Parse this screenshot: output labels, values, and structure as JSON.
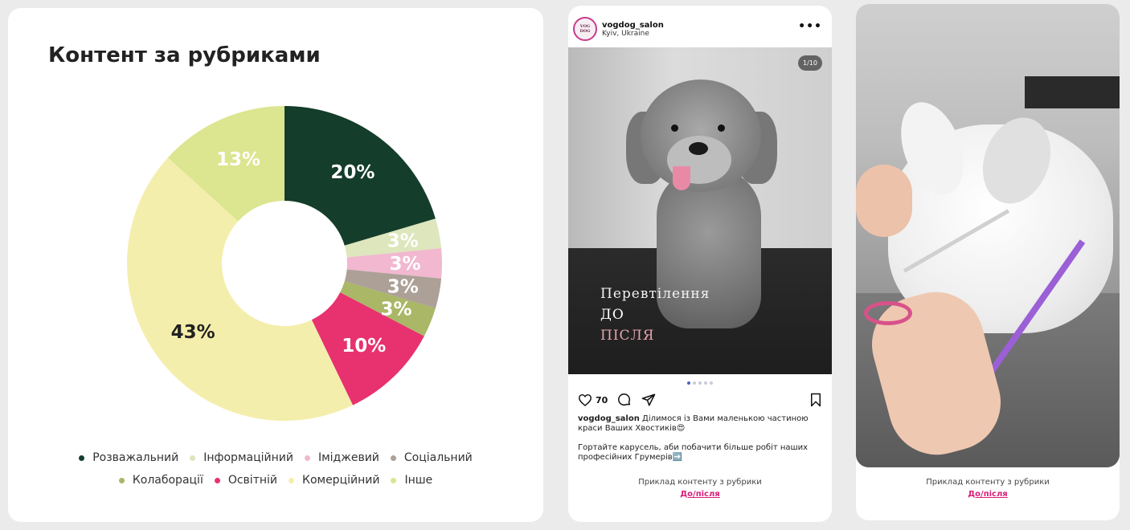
{
  "chart_data": {
    "type": "pie",
    "donut": true,
    "title": "Контент за рубриками",
    "legend_position": "bottom",
    "categories": [
      "Розважальний",
      "Інформаційний",
      "Іміджевий",
      "Соціальний",
      "Колаборації",
      "Освітній",
      "Комерційний",
      "Інше"
    ],
    "values": [
      20,
      3,
      3,
      3,
      3,
      10,
      43,
      13
    ],
    "value_labels": [
      "20%",
      "3%",
      "3%",
      "3%",
      "3%",
      "10%",
      "43%",
      "13%"
    ],
    "colors": [
      "#143d2b",
      "#dde6bc",
      "#f1b8cf",
      "#aca097",
      "#a9b766",
      "#e8316f",
      "#f4eeac",
      "#dce58f"
    ],
    "label_colors": [
      "#ffffff",
      "#ffffff",
      "#ffffff",
      "#ffffff",
      "#ffffff",
      "#ffffff",
      "#222222",
      "#ffffff"
    ]
  },
  "post": {
    "avatar_text": "VOG DOG",
    "username": "vogdog_salon",
    "location": "Kyiv, Ukraine",
    "more_icon": "more-dots-icon",
    "counter": "1/10",
    "overlay_line1": "Перевтілення",
    "overlay_line2": "ДО",
    "overlay_line3": "ПІСЛЯ",
    "likes": "70",
    "caption_user": "vogdog_salon",
    "caption_text": " Ділимося із Вами маленькою частиною краси Ваших Хвостиків😍",
    "caption_text_2": "Гортайте карусель, аби побачити більше робіт наших професійних Грумерів➡️",
    "footer_label": "Приклад контенту з рубрики",
    "footer_link": "До/після",
    "link_color": "#d81f78"
  },
  "video": {
    "footer_label": "Приклад контенту з рубрики",
    "footer_link": "До/після"
  }
}
